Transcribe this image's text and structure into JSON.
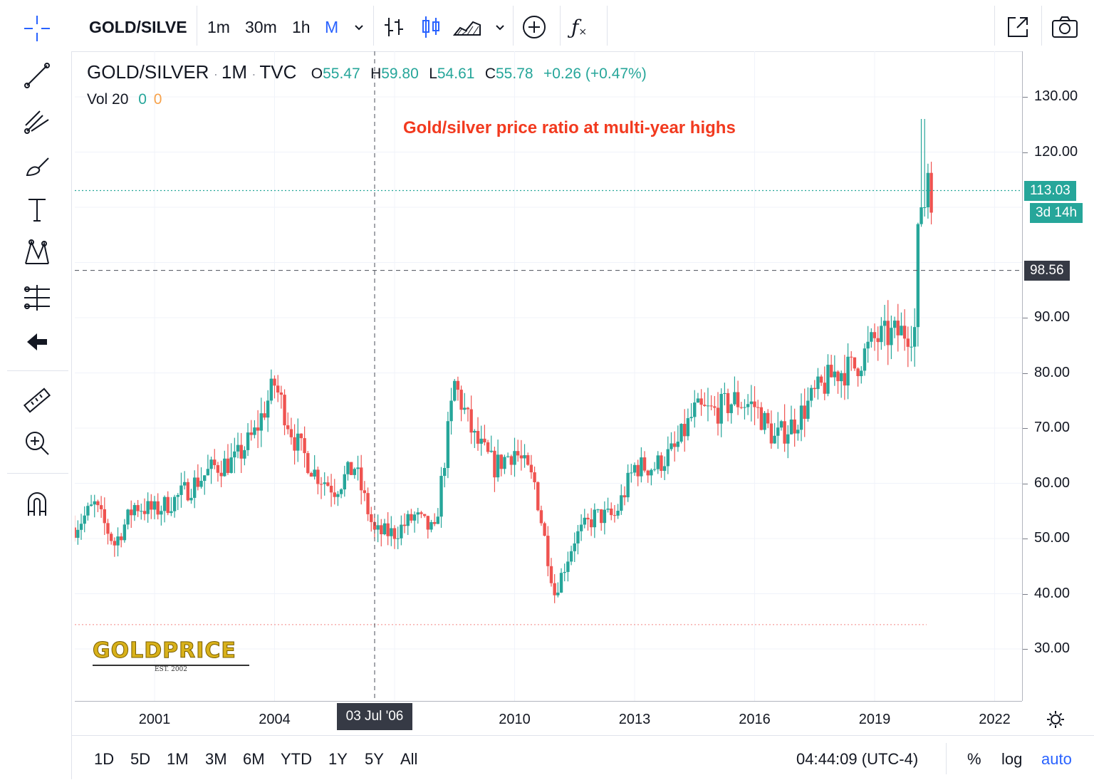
{
  "toolbar": {
    "symbol": "GOLD/SILVE",
    "intervals": [
      "1m",
      "30m",
      "1h",
      "M"
    ],
    "active_interval": "M",
    "icons": [
      "bar-style-icon",
      "candle-style-icon",
      "area-style-icon",
      "compare-plus-icon",
      "indicators-fx-icon",
      "fullscreen-icon",
      "snapshot-camera-icon"
    ]
  },
  "left_tools": [
    "crosshair-icon",
    "trend-line-icon",
    "pitchfork-icon",
    "brush-icon",
    "text-icon",
    "pattern-icon",
    "prediction-icon",
    "arrow-back-icon",
    "ruler-icon",
    "zoom-in-icon",
    "magnet-icon"
  ],
  "legend": {
    "symbol": "GOLD/SILVER",
    "interval": "1M",
    "exchange": "TVC",
    "open_label": "O",
    "open": "55.47",
    "high_label": "H",
    "high": "59.80",
    "low_label": "L",
    "low": "54.61",
    "close_label": "C",
    "close": "55.78",
    "change": "+0.26 (+0.47%)",
    "vol_label": "Vol 20",
    "vol_a": "0",
    "vol_b": "0"
  },
  "annotation": "Gold/silver price ratio at multi-year highs",
  "logo": {
    "text": "GOLDPRICE",
    "sub": "EST. 2002"
  },
  "price_axis": {
    "ticks": [
      "130.00",
      "120.00",
      "90.00",
      "80.00",
      "70.00",
      "60.00",
      "50.00",
      "40.00",
      "30.00"
    ],
    "last_price": "113.03",
    "countdown": "3d 14h",
    "crosshair_price": "98.56"
  },
  "time_axis": {
    "ticks": [
      "2001",
      "2004",
      "2010",
      "2013",
      "2016",
      "2019",
      "2022"
    ],
    "crosshair_label": "03 Jul '06"
  },
  "bottom": {
    "ranges": [
      "1D",
      "5D",
      "1M",
      "3M",
      "6M",
      "YTD",
      "1Y",
      "5Y",
      "All"
    ],
    "clock": "04:44:09 (UTC-4)",
    "percent": "%",
    "log": "log",
    "auto": "auto"
  },
  "colors": {
    "up": "#26a69a",
    "down": "#ef5350",
    "accent": "#2962ff",
    "annotation": "#f23a1f",
    "axis_badge": "#26a69a",
    "crosshair_badge": "#363a45",
    "gold": "#d8b11a"
  },
  "chart_data": {
    "type": "candlestick",
    "x_unit": "year",
    "ylim": [
      22,
      140
    ],
    "xlim": [
      1999.0,
      2022.6
    ],
    "points": [
      [
        1999.0,
        52
      ],
      [
        1999.5,
        56
      ],
      [
        2000.0,
        49
      ],
      [
        2000.5,
        56
      ],
      [
        2001.0,
        55
      ],
      [
        2001.5,
        57
      ],
      [
        2002.0,
        60
      ],
      [
        2002.5,
        63
      ],
      [
        2003.0,
        64
      ],
      [
        2003.5,
        69
      ],
      [
        2004.0,
        78
      ],
      [
        2004.5,
        68
      ],
      [
        2005.0,
        62
      ],
      [
        2005.5,
        59
      ],
      [
        2006.0,
        63
      ],
      [
        2006.5,
        51
      ],
      [
        2007.0,
        51
      ],
      [
        2007.5,
        54
      ],
      [
        2008.0,
        51
      ],
      [
        2008.5,
        78
      ],
      [
        2009.0,
        68
      ],
      [
        2009.5,
        63
      ],
      [
        2010.0,
        66
      ],
      [
        2010.5,
        60
      ],
      [
        2011.0,
        40
      ],
      [
        2011.5,
        50
      ],
      [
        2012.0,
        54
      ],
      [
        2012.5,
        54
      ],
      [
        2013.0,
        63
      ],
      [
        2013.5,
        63
      ],
      [
        2014.0,
        66
      ],
      [
        2014.5,
        73
      ],
      [
        2015.0,
        73
      ],
      [
        2015.5,
        75
      ],
      [
        2016.0,
        74
      ],
      [
        2016.5,
        68
      ],
      [
        2017.0,
        71
      ],
      [
        2017.5,
        76
      ],
      [
        2018.0,
        80
      ],
      [
        2018.5,
        81
      ],
      [
        2019.0,
        86
      ],
      [
        2019.5,
        87
      ],
      [
        2020.0,
        88
      ],
      [
        2020.2,
        126
      ],
      [
        2020.4,
        113
      ]
    ],
    "last_close": 113.03,
    "crosshair": {
      "x": "03 Jul '06",
      "y": 98.56
    }
  }
}
